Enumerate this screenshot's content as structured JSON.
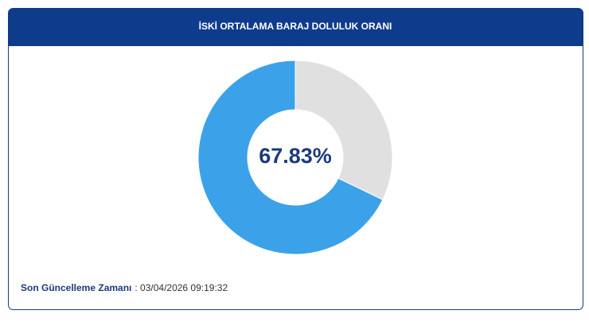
{
  "chart_data": {
    "type": "donut",
    "title": "İSKİ ORTALAMA BARAJ DOLULUK ORANI",
    "values": [
      67.83,
      32.17
    ],
    "value_labels": [
      "67.83%",
      null
    ],
    "colors": [
      "#3ba2ea",
      "#e0e0e0"
    ],
    "footer_label": "Son Güncelleme Zamanı",
    "footer_value": ": 03/04/2026 09:19:32"
  }
}
